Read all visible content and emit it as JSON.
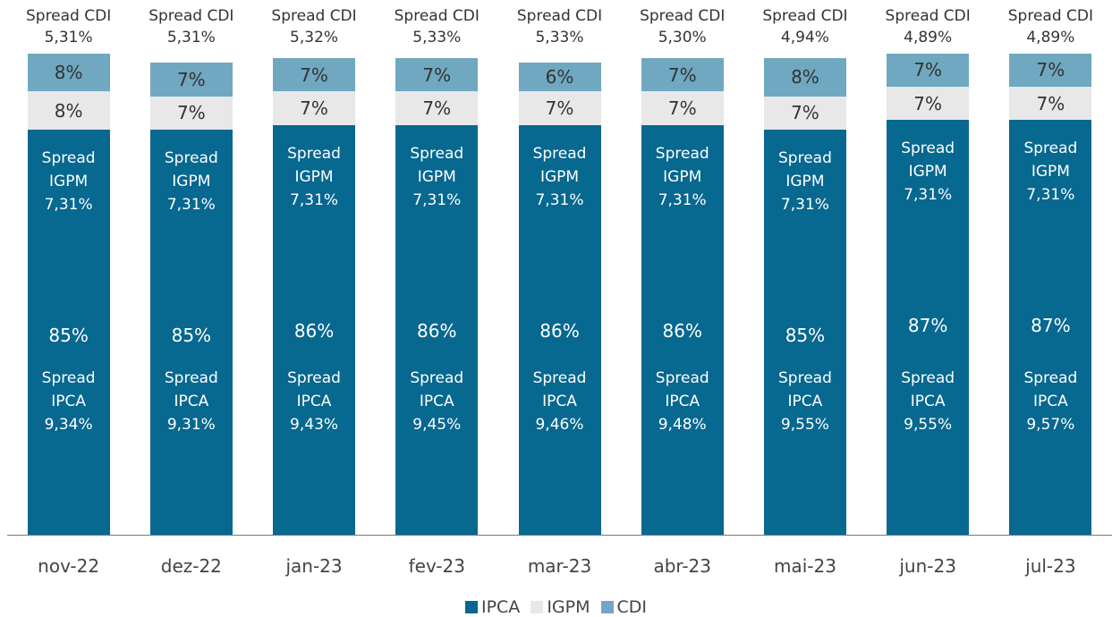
{
  "chart_data": {
    "type": "bar",
    "stacked": true,
    "categories": [
      "nov-22",
      "dez-22",
      "jan-23",
      "fev-23",
      "mar-23",
      "abr-23",
      "mai-23",
      "jun-23",
      "jul-23"
    ],
    "series": [
      {
        "name": "IPCA",
        "color": "#076890",
        "values": [
          85,
          85,
          86,
          86,
          86,
          86,
          85,
          87,
          87
        ],
        "value_labels": [
          "85%",
          "85%",
          "86%",
          "86%",
          "86%",
          "86%",
          "85%",
          "87%",
          "87%"
        ]
      },
      {
        "name": "IGPM",
        "color": "#e8e8e8",
        "values": [
          8,
          7,
          7,
          7,
          7,
          7,
          7,
          7,
          7
        ],
        "value_labels": [
          "8%",
          "7%",
          "7%",
          "7%",
          "7%",
          "7%",
          "7%",
          "7%",
          "7%"
        ]
      },
      {
        "name": "CDI",
        "color": "#6fa8c0",
        "values": [
          8,
          7,
          7,
          7,
          6,
          7,
          8,
          7,
          7
        ],
        "value_labels": [
          "8%",
          "7%",
          "7%",
          "7%",
          "6%",
          "7%",
          "8%",
          "7%",
          "7%"
        ]
      }
    ],
    "annotations": [
      {
        "name": "Spread CDI",
        "labels": [
          "5,31%",
          "5,31%",
          "5,32%",
          "5,33%",
          "5,33%",
          "5,30%",
          "4,94%",
          "4,89%",
          "4,89%"
        ]
      },
      {
        "name": "Spread IGPM",
        "labels": [
          "7,31%",
          "7,31%",
          "7,31%",
          "7,31%",
          "7,31%",
          "7,31%",
          "7,31%",
          "7,31%",
          "7,31%"
        ]
      },
      {
        "name": "Spread IPCA",
        "labels": [
          "9,34%",
          "9,31%",
          "9,43%",
          "9,45%",
          "9,46%",
          "9,48%",
          "9,55%",
          "9,55%",
          "9,57%"
        ]
      }
    ],
    "legend": "bottom"
  }
}
